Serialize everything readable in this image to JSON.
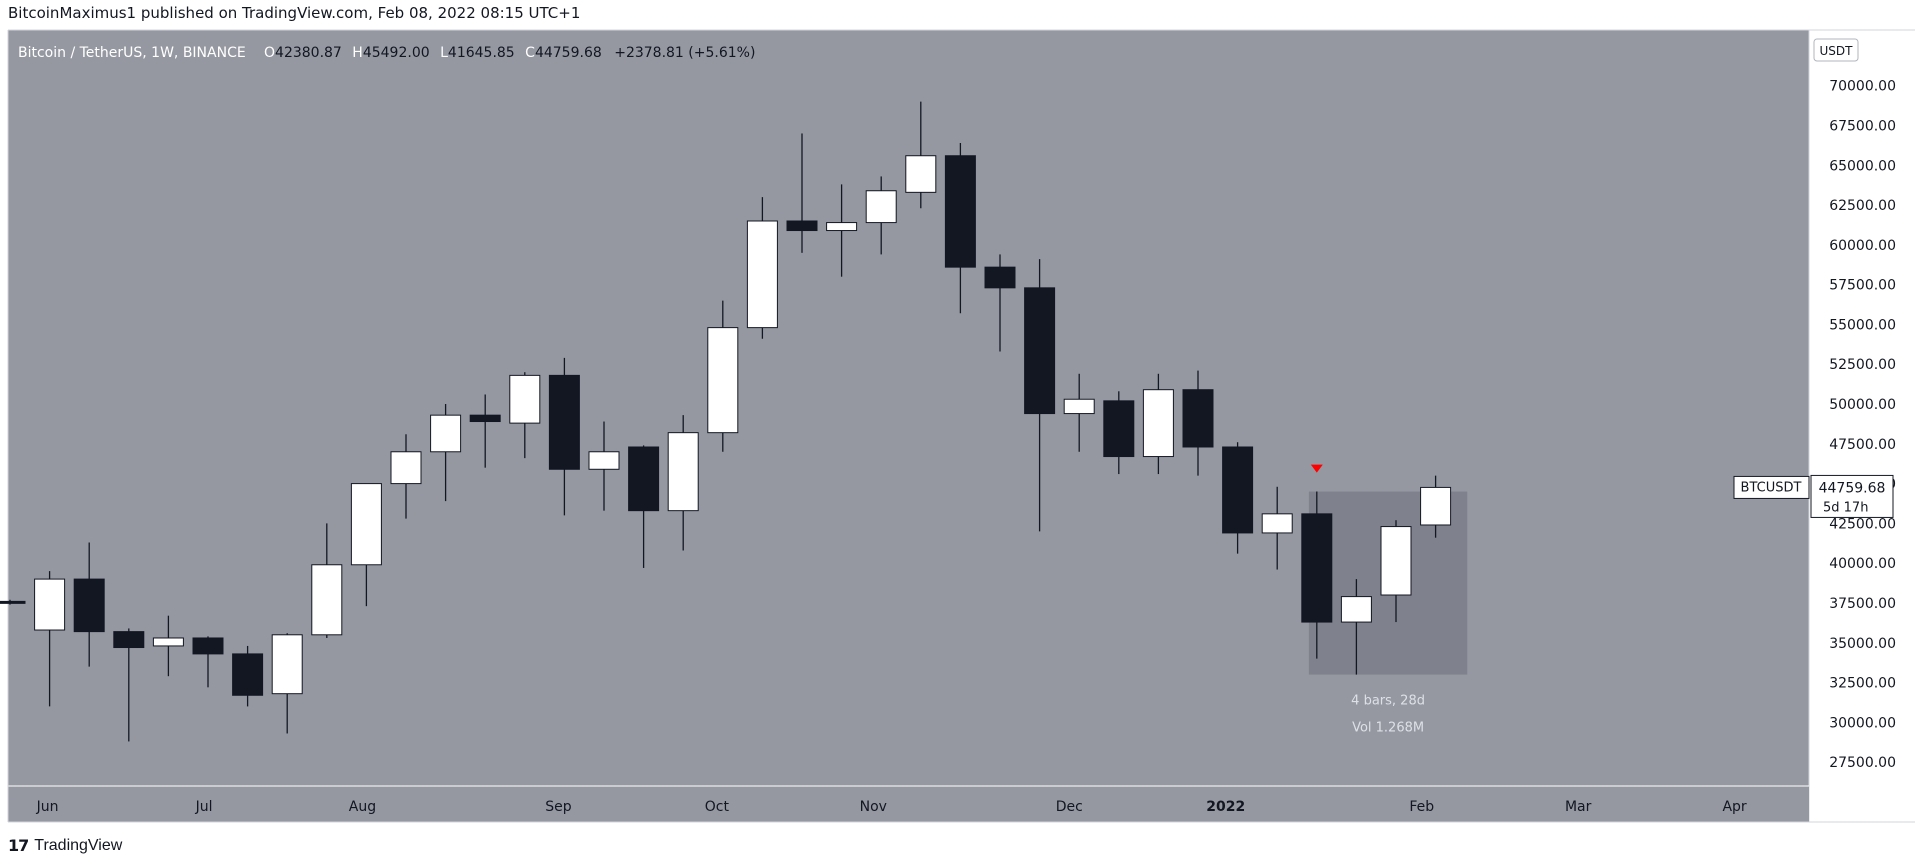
{
  "header": {
    "published": "BitcoinMaximus1 published on TradingView.com, Feb 08, 2022 08:15 UTC+1"
  },
  "legend": {
    "symbol": "Bitcoin / TetherUS, 1W, BINANCE",
    "o_label": "O",
    "o_value": "42380.87",
    "h_label": "H",
    "h_value": "45492.00",
    "l_label": "L",
    "l_value": "41645.85",
    "c_label": "C",
    "c_value": "44759.68",
    "change": "+2378.81 (+5.61%)"
  },
  "currency_badge": "USDT",
  "price_tag": {
    "symbol": "BTCUSDT",
    "price": "44759.68",
    "countdown": "5d 17h"
  },
  "range_box": {
    "bars": "4 bars, 28d",
    "volume": "Vol 1.268M"
  },
  "footer": {
    "brand": "TradingView",
    "logo_glyph": "17"
  },
  "colors": {
    "background": "#9598a1",
    "up_candle": "#ffffff",
    "down_candle": "#131722",
    "range_box": "#787b86",
    "marker": "#ff0000"
  },
  "chart_data": {
    "type": "candlestick",
    "ylim": [
      26000,
      73500
    ],
    "yticks": [
      27500,
      30000,
      32500,
      35000,
      37500,
      40000,
      42500,
      45000,
      47500,
      50000,
      52500,
      55000,
      57500,
      60000,
      62500,
      65000,
      67500,
      70000
    ],
    "ytick_labels": [
      "27500.00",
      "30000.00",
      "32500.00",
      "35000.00",
      "37500.00",
      "40000.00",
      "42500.00",
      "45000.00",
      "47500.00",
      "50000.00",
      "52500.00",
      "55000.00",
      "57500.00",
      "60000.00",
      "62500.00",
      "65000.00",
      "67500.00",
      "70000.00"
    ],
    "xaxis": {
      "months": [
        {
          "label": "Jun",
          "bar": 0.95
        },
        {
          "label": "Jul",
          "bar": 4.9
        },
        {
          "label": "Aug",
          "bar": 8.9
        },
        {
          "label": "Sep",
          "bar": 13.85
        },
        {
          "label": "Oct",
          "bar": 17.85
        },
        {
          "label": "Nov",
          "bar": 21.8
        },
        {
          "label": "Dec",
          "bar": 26.75
        },
        {
          "label": "2022",
          "bar": 30.7,
          "bold": true
        },
        {
          "label": "Feb",
          "bar": 35.65
        },
        {
          "label": "Mar",
          "bar": 39.6
        },
        {
          "label": "Apr",
          "bar": 43.55
        }
      ]
    },
    "candles": [
      {
        "o": 37600,
        "h": 37700,
        "l": 37400,
        "c": 37500
      },
      {
        "o": 35800,
        "h": 39500,
        "l": 31000,
        "c": 39000
      },
      {
        "o": 39000,
        "h": 41300,
        "l": 33500,
        "c": 35700
      },
      {
        "o": 35700,
        "h": 35900,
        "l": 28800,
        "c": 34700
      },
      {
        "o": 34800,
        "h": 36700,
        "l": 32900,
        "c": 35300
      },
      {
        "o": 35300,
        "h": 35400,
        "l": 32200,
        "c": 34300
      },
      {
        "o": 34300,
        "h": 34800,
        "l": 31000,
        "c": 31700
      },
      {
        "o": 31800,
        "h": 35600,
        "l": 29300,
        "c": 35500
      },
      {
        "o": 35500,
        "h": 42500,
        "l": 35300,
        "c": 39900
      },
      {
        "o": 39900,
        "h": 44800,
        "l": 37300,
        "c": 45000
      },
      {
        "o": 45000,
        "h": 48100,
        "l": 42800,
        "c": 47000
      },
      {
        "o": 47000,
        "h": 50000,
        "l": 43900,
        "c": 49300
      },
      {
        "o": 49300,
        "h": 50600,
        "l": 46000,
        "c": 48900
      },
      {
        "o": 48800,
        "h": 52000,
        "l": 46600,
        "c": 51800
      },
      {
        "o": 51800,
        "h": 52900,
        "l": 43000,
        "c": 45900
      },
      {
        "o": 45900,
        "h": 48900,
        "l": 43300,
        "c": 47000
      },
      {
        "o": 47300,
        "h": 47400,
        "l": 39700,
        "c": 43300
      },
      {
        "o": 43300,
        "h": 49300,
        "l": 40800,
        "c": 48200
      },
      {
        "o": 48200,
        "h": 56500,
        "l": 47000,
        "c": 54800
      },
      {
        "o": 54800,
        "h": 63000,
        "l": 54100,
        "c": 61500
      },
      {
        "o": 61500,
        "h": 67000,
        "l": 59500,
        "c": 60900
      },
      {
        "o": 60900,
        "h": 63800,
        "l": 58000,
        "c": 61400
      },
      {
        "o": 61400,
        "h": 64300,
        "l": 59400,
        "c": 63400
      },
      {
        "o": 63300,
        "h": 69000,
        "l": 62300,
        "c": 65600
      },
      {
        "o": 65600,
        "h": 66400,
        "l": 55700,
        "c": 58600
      },
      {
        "o": 58600,
        "h": 59400,
        "l": 53300,
        "c": 57300
      },
      {
        "o": 57300,
        "h": 59100,
        "l": 42000,
        "c": 49400
      },
      {
        "o": 49400,
        "h": 51900,
        "l": 47000,
        "c": 50300
      },
      {
        "o": 50200,
        "h": 50800,
        "l": 45600,
        "c": 46700
      },
      {
        "o": 46700,
        "h": 51900,
        "l": 45600,
        "c": 50900
      },
      {
        "o": 50900,
        "h": 52100,
        "l": 45500,
        "c": 47300
      },
      {
        "o": 47300,
        "h": 47600,
        "l": 40600,
        "c": 41900
      },
      {
        "o": 41900,
        "h": 44800,
        "l": 39600,
        "c": 43100
      },
      {
        "o": 43100,
        "h": 44500,
        "l": 34000,
        "c": 36300
      },
      {
        "o": 36300,
        "h": 39000,
        "l": 33000,
        "c": 37900
      },
      {
        "o": 38000,
        "h": 42700,
        "l": 36300,
        "c": 42300
      },
      {
        "o": 42400,
        "h": 45500,
        "l": 41600,
        "c": 44760
      }
    ],
    "range_start_bar": 32.8,
    "range_end_bar": 36.8,
    "range_low": 33000,
    "range_high": 44500,
    "marker_bar": 33,
    "marker_price": 45500,
    "last_price": 44759.68
  }
}
